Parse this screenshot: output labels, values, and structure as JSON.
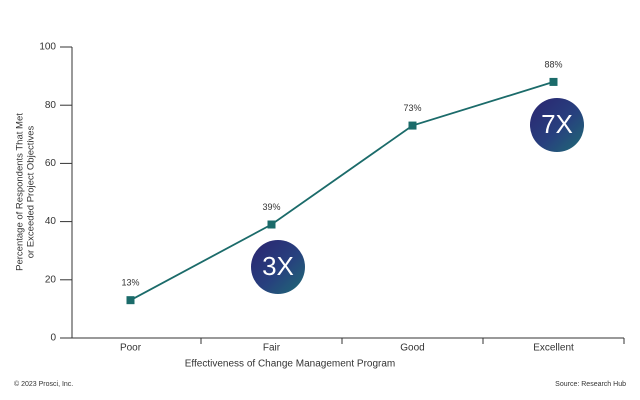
{
  "chart_data": {
    "type": "line",
    "categories": [
      "Poor",
      "Fair",
      "Good",
      "Excellent"
    ],
    "values": [
      13,
      39,
      73,
      88
    ],
    "value_labels": [
      "13%",
      "39%",
      "73%",
      "88%"
    ],
    "color": "#1b6b6a",
    "ylim": [
      0,
      100
    ],
    "yticks": [
      0,
      20,
      40,
      60,
      80,
      100
    ],
    "x_label": "Effectiveness of Change Management Program",
    "y_label": [
      "Percentage of Respondents That Met",
      "or Exceeded Project Objectives"
    ],
    "annotations": [
      "3X",
      "7X"
    ],
    "footer_left": "© 2023 Prosci, Inc.",
    "footer_right": "Source: Research Hub"
  }
}
